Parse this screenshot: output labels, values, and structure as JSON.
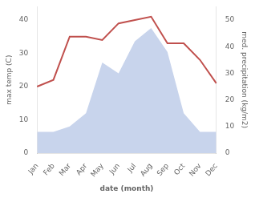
{
  "chart_data": {
    "type": "line",
    "categories": [
      "Jan",
      "Feb",
      "Mar",
      "Apr",
      "May",
      "Jun",
      "Jul",
      "Aug",
      "Sep",
      "Oct",
      "Nov",
      "Dec"
    ],
    "series": [
      {
        "type": "area",
        "color": "#c8d4ec",
        "axis": "y2",
        "values": [
          8,
          8,
          10,
          15,
          34,
          30,
          42,
          47,
          38,
          15,
          8,
          8
        ]
      },
      {
        "type": "line",
        "color": "#c0504d",
        "values": [
          20,
          22,
          35,
          35,
          34,
          39,
          40,
          41,
          33,
          33,
          28,
          21
        ]
      }
    ],
    "xlabel": "date (month)",
    "ylabel": "max temp (C)",
    "y2label": "med. precipitation (kg/m2)",
    "ylim": [
      0,
      44
    ],
    "yticks": [
      0,
      10,
      20,
      30,
      40
    ],
    "y2lim": [
      0,
      55
    ],
    "y2ticks": [
      0,
      10,
      20,
      30,
      40,
      50
    ],
    "grid": false
  }
}
